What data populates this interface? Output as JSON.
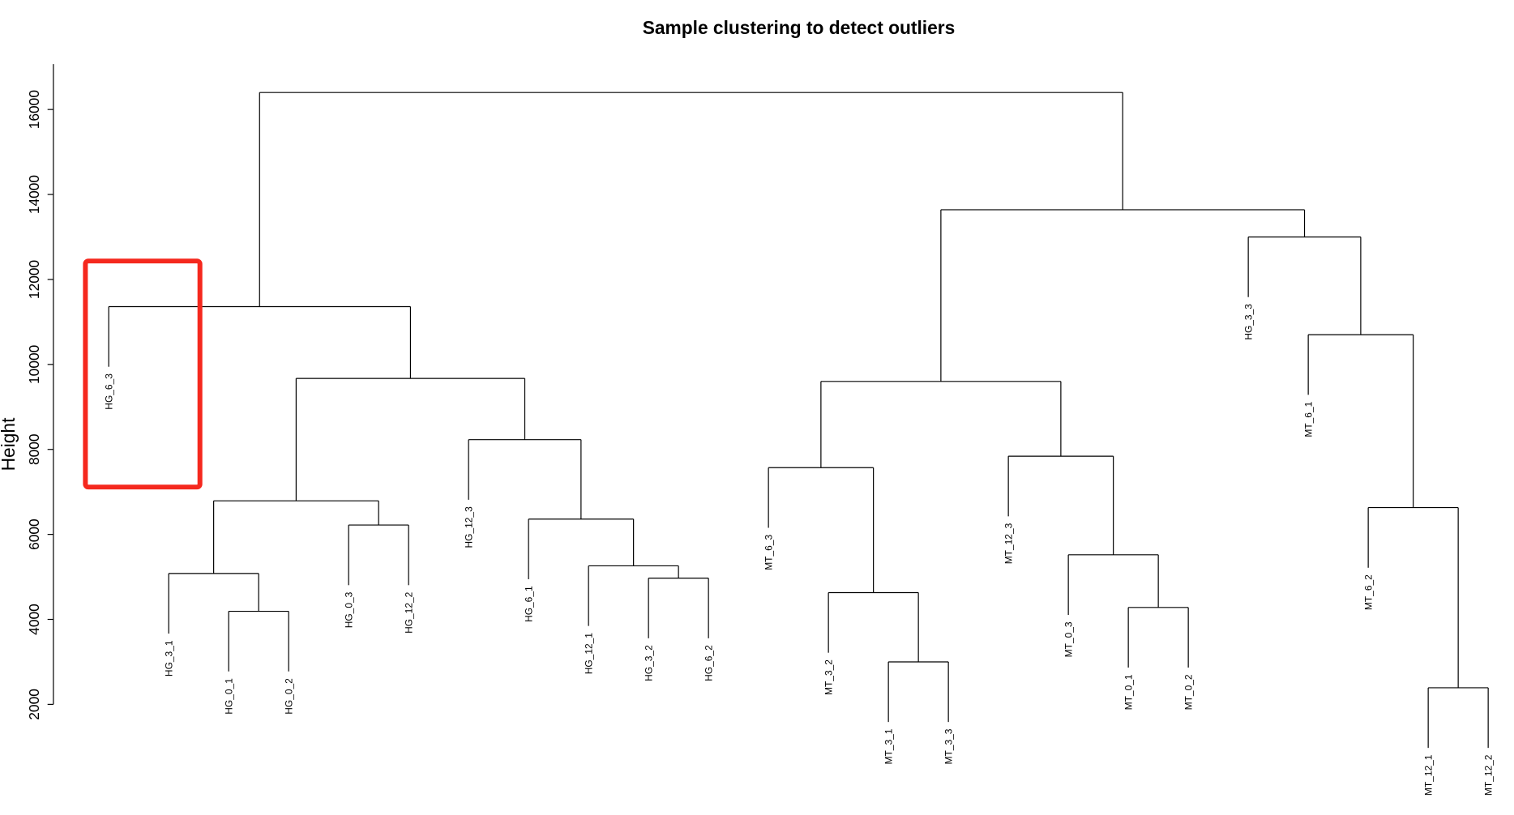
{
  "chart_data": {
    "type": "dendrogram",
    "title": "Sample clustering to detect outliers",
    "xlabel": "",
    "ylabel": "Height",
    "ylim": [
      1500,
      17000
    ],
    "yticks": [
      2000,
      4000,
      6000,
      8000,
      10000,
      12000,
      14000,
      16000
    ],
    "hang": 1415,
    "tree": {
      "h": 16400,
      "c": [
        {
          "h": 11360,
          "c": [
            "HG_6_3",
            {
              "h": 9670,
              "c": [
                {
                  "h": 6790,
                  "c": [
                    {
                      "h": 5080,
                      "c": [
                        "HG_3_1",
                        {
                          "h": 4190,
                          "c": [
                            "HG_0_1",
                            "HG_0_2"
                          ]
                        }
                      ]
                    },
                    {
                      "h": 6220,
                      "c": [
                        "HG_0_3",
                        "HG_12_2"
                      ]
                    }
                  ]
                },
                {
                  "h": 8230,
                  "c": [
                    "HG_12_3",
                    {
                      "h": 6360,
                      "c": [
                        "HG_6_1",
                        {
                          "h": 5260,
                          "c": [
                            "HG_12_1",
                            {
                              "h": 4970,
                              "c": [
                                "HG_3_2",
                                "HG_6_2"
                              ]
                            }
                          ]
                        }
                      ]
                    }
                  ]
                }
              ]
            }
          ]
        },
        {
          "h": 13640,
          "c": [
            {
              "h": 9600,
              "c": [
                {
                  "h": 7570,
                  "c": [
                    "MT_6_3",
                    {
                      "h": 4630,
                      "c": [
                        "MT_3_2",
                        {
                          "h": 3000,
                          "c": [
                            "MT_3_1",
                            "MT_3_3"
                          ]
                        }
                      ]
                    }
                  ]
                },
                {
                  "h": 7840,
                  "c": [
                    "MT_12_3",
                    {
                      "h": 5520,
                      "c": [
                        "MT_0_3",
                        {
                          "h": 4280,
                          "c": [
                            "MT_0_1",
                            "MT_0_2"
                          ]
                        }
                      ]
                    }
                  ]
                }
              ]
            },
            {
              "h": 13000,
              "c": [
                "HG_3_3",
                {
                  "h": 10700,
                  "c": [
                    "MT_6_1",
                    {
                      "h": 6630,
                      "c": [
                        "MT_6_2",
                        {
                          "h": 2390,
                          "c": [
                            "MT_12_1",
                            "MT_12_2"
                          ]
                        }
                      ]
                    }
                  ]
                }
              ]
            }
          ]
        }
      ]
    },
    "highlight": {
      "leaf": "HG_6_3",
      "color": "#f5281e"
    }
  }
}
